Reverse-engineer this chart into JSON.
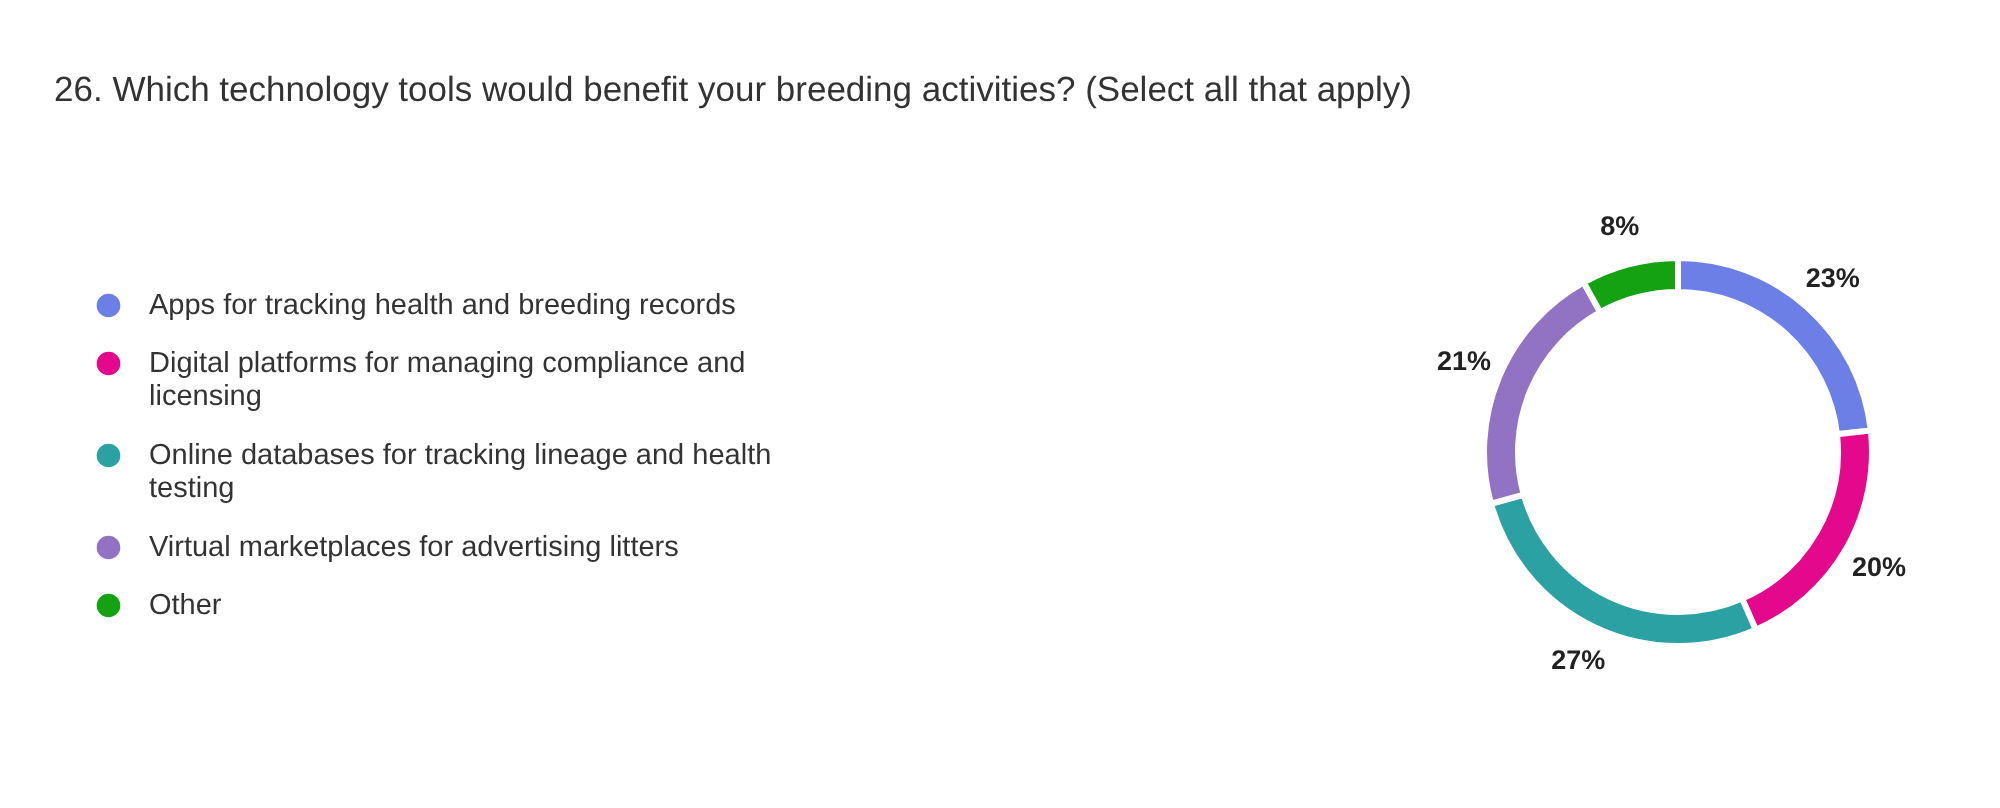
{
  "chart_data": {
    "type": "donut",
    "title": "26. Which technology tools would benefit your breeding activities? (Select all that apply)",
    "categories": [
      "Apps for tracking health and breeding records",
      "Digital platforms for managing compliance and licensing",
      "Online databases for tracking lineage and health testing",
      "Virtual marketplaces for advertising litters",
      "Other"
    ],
    "values": [
      23,
      20,
      27,
      21,
      8
    ],
    "colors": [
      "#6b7fe6",
      "#e3088c",
      "#2ca1a4",
      "#9272c2",
      "#14a212"
    ],
    "value_labels": [
      "23%",
      "20%",
      "27%",
      "21%",
      "8%"
    ],
    "legend": "left"
  }
}
